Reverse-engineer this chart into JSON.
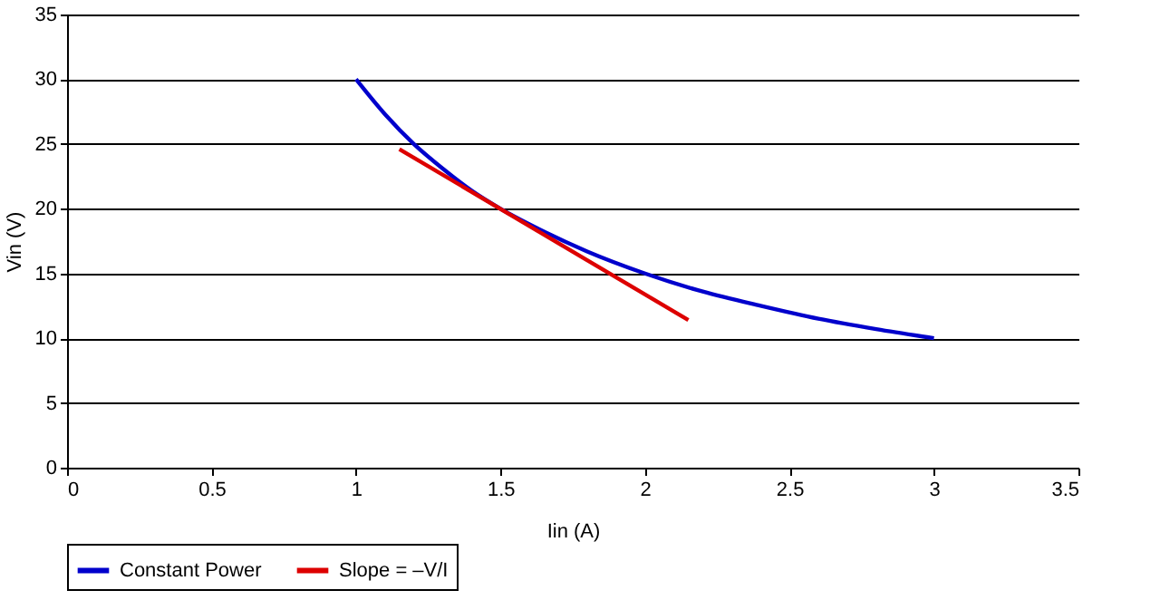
{
  "chart_data": {
    "type": "line",
    "xlabel": "Iin (A)",
    "ylabel": "Vin (V)",
    "xlim": [
      0,
      3.5
    ],
    "xticks": [
      0,
      0.5,
      1,
      1.5,
      2,
      2.5,
      3,
      3.5
    ],
    "ylim": [
      0,
      35
    ],
    "yticks": [
      0,
      5,
      10,
      15,
      20,
      25,
      30,
      35
    ],
    "grid": "y",
    "legend": "bottom",
    "marker": "none",
    "line_style": "solid",
    "series": [
      {
        "name": "Constant Power",
        "color": "#0000cc",
        "x": [
          1,
          1.1,
          1.2,
          1.3,
          1.4,
          1.5,
          1.6,
          1.8,
          2,
          2.2,
          2.4,
          2.6,
          2.8,
          3
        ],
        "values": [
          30,
          27.3,
          25,
          23.1,
          21.4,
          20,
          18.8,
          16.7,
          15,
          13.6,
          12.5,
          11.5,
          10.7,
          10
        ]
      },
      {
        "name": "Slope = –V/I",
        "color": "#dd0000",
        "x": [
          1.15,
          2.15
        ],
        "values": [
          24.6,
          11.4
        ]
      }
    ]
  }
}
